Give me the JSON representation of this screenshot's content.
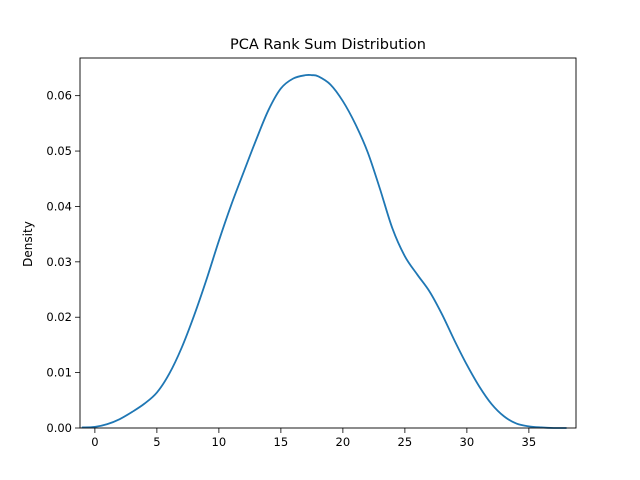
{
  "chart_data": {
    "type": "line",
    "title": "PCA Rank Sum Distribution",
    "xlabel": "",
    "ylabel": "Density",
    "xlim": [
      -1.2,
      38.8
    ],
    "ylim": [
      0,
      0.0668
    ],
    "x_ticks": [
      0,
      5,
      10,
      15,
      20,
      25,
      30,
      35
    ],
    "x_tick_labels": [
      "0",
      "5",
      "10",
      "15",
      "20",
      "25",
      "30",
      "35"
    ],
    "y_ticks": [
      0,
      0.01,
      0.02,
      0.03,
      0.04,
      0.05,
      0.06
    ],
    "y_tick_labels": [
      "0.00",
      "0.01",
      "0.02",
      "0.03",
      "0.04",
      "0.05",
      "0.06"
    ],
    "grid": false,
    "series": [
      {
        "color": "#1f77b4",
        "x": [
          -1.0,
          0.0,
          1.0,
          2.0,
          3.0,
          4.0,
          5.0,
          6.0,
          7.0,
          8.0,
          9.0,
          10.0,
          11.0,
          12.0,
          13.0,
          14.0,
          15.0,
          16.0,
          17.0,
          17.5,
          18.0,
          19.0,
          20.0,
          21.0,
          22.0,
          23.0,
          24.0,
          25.0,
          26.0,
          27.0,
          28.0,
          29.0,
          30.0,
          31.0,
          32.0,
          33.0,
          34.0,
          35.0,
          36.0,
          37.0,
          38.0
        ],
        "y": [
          0.0001,
          0.0002,
          0.0007,
          0.0016,
          0.0029,
          0.0044,
          0.0064,
          0.0098,
          0.0145,
          0.0203,
          0.0268,
          0.0338,
          0.0403,
          0.0462,
          0.052,
          0.0574,
          0.0613,
          0.0631,
          0.0637,
          0.0637,
          0.0635,
          0.062,
          0.059,
          0.0549,
          0.0498,
          0.0431,
          0.036,
          0.031,
          0.0277,
          0.0246,
          0.0205,
          0.0158,
          0.0114,
          0.0075,
          0.0043,
          0.0021,
          0.0008,
          0.0003,
          0.0001,
          0.0,
          0.0
        ]
      }
    ]
  }
}
